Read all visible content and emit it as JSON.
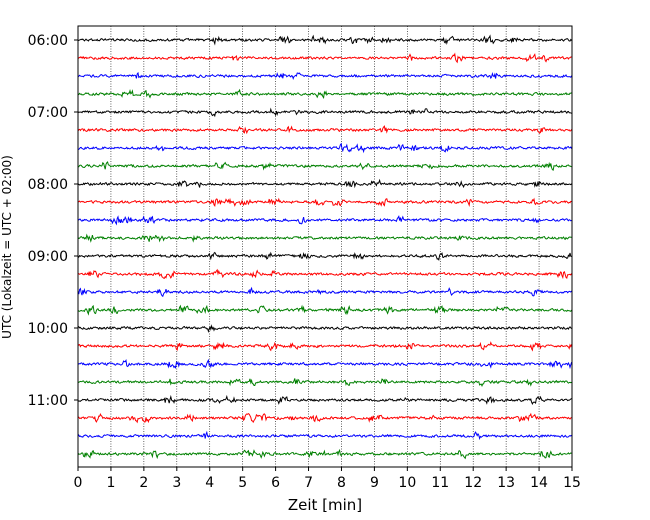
{
  "chart_data": {
    "type": "line",
    "subtype": "seismogram-helicorder",
    "title": "",
    "xlabel": "Zeit  [min]",
    "ylabel": "UTC (Lokalzeit = UTC + 02:00)",
    "xlim": [
      0,
      15
    ],
    "x_ticks": [
      0,
      1,
      2,
      3,
      4,
      5,
      6,
      7,
      8,
      9,
      10,
      11,
      12,
      13,
      14,
      15
    ],
    "x_tick_labels": [
      "0",
      "1",
      "2",
      "3",
      "4",
      "5",
      "6",
      "7",
      "8",
      "9",
      "10",
      "11",
      "12",
      "13",
      "14",
      "15"
    ],
    "y_tick_labels": [
      "06:00",
      "07:00",
      "08:00",
      "09:00",
      "10:00",
      "11:00"
    ],
    "line_start_times": [
      "06:00",
      "06:15",
      "06:30",
      "06:45",
      "07:00",
      "07:15",
      "07:30",
      "07:45",
      "08:00",
      "08:15",
      "08:30",
      "08:45",
      "09:00",
      "09:15",
      "09:30",
      "09:45",
      "10:00",
      "10:15",
      "10:30",
      "10:45",
      "11:00",
      "11:15",
      "11:30",
      "11:45"
    ],
    "line_duration_min": 15,
    "color_cycle": [
      "#000000",
      "#ff0000",
      "#0000ff",
      "#008000"
    ],
    "vertical_grid": "dotted, every minute",
    "legend": "none"
  }
}
